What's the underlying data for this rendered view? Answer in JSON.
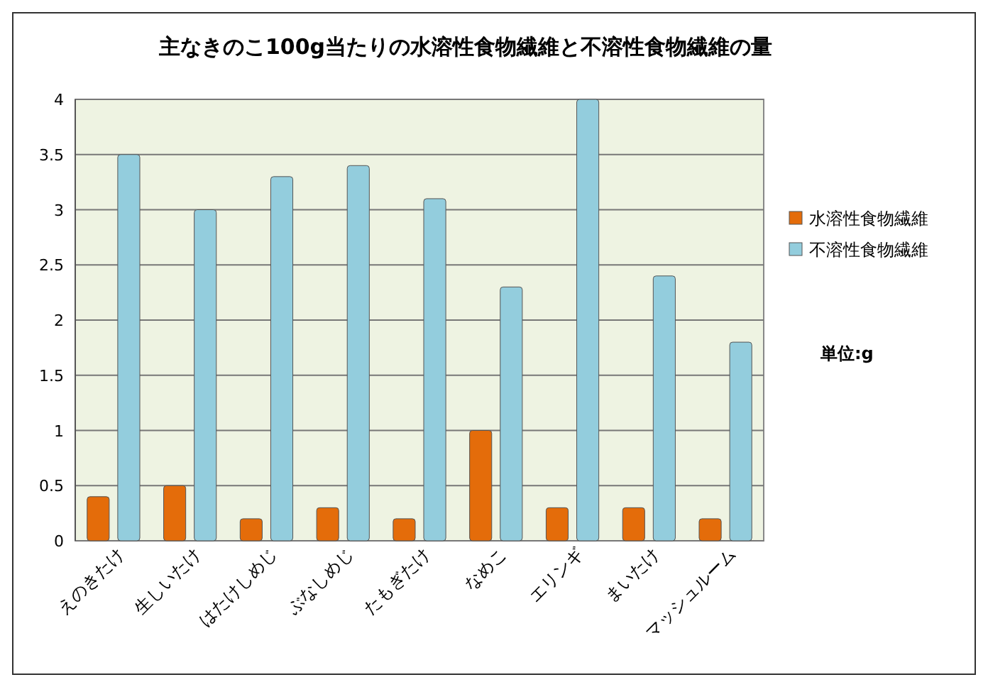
{
  "chart_data": {
    "type": "bar",
    "title": "主なきのこ100g当たりの水溶性食物繊維と不溶性食物繊維の量",
    "categories": [
      "えのきたけ",
      "生しいたけ",
      "はたけしめじ",
      "ぶなしめじ",
      "たもぎたけ",
      "なめこ",
      "エリンギ",
      "まいたけ",
      "マッシュルーム"
    ],
    "series": [
      {
        "name": "水溶性食物繊維",
        "color": "#e46c0a",
        "values": [
          0.4,
          0.5,
          0.2,
          0.3,
          0.2,
          1.0,
          0.3,
          0.3,
          0.2
        ]
      },
      {
        "name": "不溶性食物繊維",
        "color": "#93cddd",
        "values": [
          3.5,
          3.0,
          3.3,
          3.4,
          3.1,
          2.3,
          4.0,
          2.4,
          1.8
        ]
      }
    ],
    "ylim": [
      0,
      4
    ],
    "yticks": [
      0,
      0.5,
      1,
      1.5,
      2,
      2.5,
      3,
      3.5,
      4
    ],
    "grid": "y",
    "legend": "right",
    "annotations": [
      "単位:g"
    ]
  }
}
